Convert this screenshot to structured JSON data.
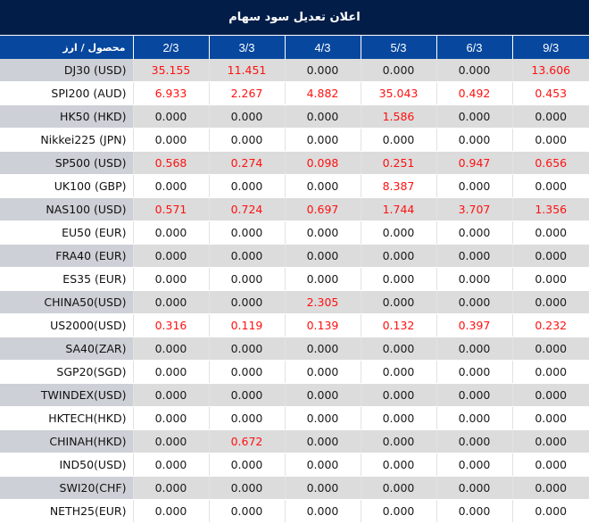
{
  "title": "اعلان تعدیل سود سهام",
  "header": {
    "product_label": "محصول / ارز",
    "dates": [
      "2/3",
      "3/3",
      "4/3",
      "5/3",
      "6/3",
      "9/3"
    ]
  },
  "colors": {
    "title_bg": "#021e48",
    "header_bg": "#07479e",
    "shaded_row": "#dcdcdc",
    "shaded_name": "#cdd0d6",
    "nonzero_value": "#ff1010",
    "zero_value": "#1a1a1a"
  },
  "rows": [
    {
      "name": "DJ30 (USD)",
      "values": [
        "35.155",
        "11.451",
        "0.000",
        "0.000",
        "0.000",
        "13.606"
      ]
    },
    {
      "name": "SPI200 (AUD)",
      "values": [
        "6.933",
        "2.267",
        "4.882",
        "35.043",
        "0.492",
        "0.453"
      ]
    },
    {
      "name": "HK50 (HKD)",
      "values": [
        "0.000",
        "0.000",
        "0.000",
        "1.586",
        "0.000",
        "0.000"
      ]
    },
    {
      "name": "Nikkei225 (JPN)",
      "values": [
        "0.000",
        "0.000",
        "0.000",
        "0.000",
        "0.000",
        "0.000"
      ]
    },
    {
      "name": "SP500 (USD)",
      "values": [
        "0.568",
        "0.274",
        "0.098",
        "0.251",
        "0.947",
        "0.656"
      ]
    },
    {
      "name": "UK100 (GBP)",
      "values": [
        "0.000",
        "0.000",
        "0.000",
        "8.387",
        "0.000",
        "0.000"
      ]
    },
    {
      "name": "NAS100 (USD)",
      "values": [
        "0.571",
        "0.724",
        "0.697",
        "1.744",
        "3.707",
        "1.356"
      ]
    },
    {
      "name": "EU50 (EUR)",
      "values": [
        "0.000",
        "0.000",
        "0.000",
        "0.000",
        "0.000",
        "0.000"
      ]
    },
    {
      "name": "FRA40 (EUR)",
      "values": [
        "0.000",
        "0.000",
        "0.000",
        "0.000",
        "0.000",
        "0.000"
      ]
    },
    {
      "name": "ES35 (EUR)",
      "values": [
        "0.000",
        "0.000",
        "0.000",
        "0.000",
        "0.000",
        "0.000"
      ]
    },
    {
      "name": "CHINA50(USD)",
      "values": [
        "0.000",
        "0.000",
        "2.305",
        "0.000",
        "0.000",
        "0.000"
      ]
    },
    {
      "name": "US2000(USD)",
      "values": [
        "0.316",
        "0.119",
        "0.139",
        "0.132",
        "0.397",
        "0.232"
      ]
    },
    {
      "name": "SA40(ZAR)",
      "values": [
        "0.000",
        "0.000",
        "0.000",
        "0.000",
        "0.000",
        "0.000"
      ]
    },
    {
      "name": "SGP20(SGD)",
      "values": [
        "0.000",
        "0.000",
        "0.000",
        "0.000",
        "0.000",
        "0.000"
      ]
    },
    {
      "name": "TWINDEX(USD)",
      "values": [
        "0.000",
        "0.000",
        "0.000",
        "0.000",
        "0.000",
        "0.000"
      ]
    },
    {
      "name": "HKTECH(HKD)",
      "values": [
        "0.000",
        "0.000",
        "0.000",
        "0.000",
        "0.000",
        "0.000"
      ]
    },
    {
      "name": "CHINAH(HKD)",
      "values": [
        "0.000",
        "0.672",
        "0.000",
        "0.000",
        "0.000",
        "0.000"
      ]
    },
    {
      "name": "IND50(USD)",
      "values": [
        "0.000",
        "0.000",
        "0.000",
        "0.000",
        "0.000",
        "0.000"
      ]
    },
    {
      "name": "SWI20(CHF)",
      "values": [
        "0.000",
        "0.000",
        "0.000",
        "0.000",
        "0.000",
        "0.000"
      ]
    },
    {
      "name": "NETH25(EUR)",
      "values": [
        "0.000",
        "0.000",
        "0.000",
        "0.000",
        "0.000",
        "0.000"
      ]
    }
  ]
}
